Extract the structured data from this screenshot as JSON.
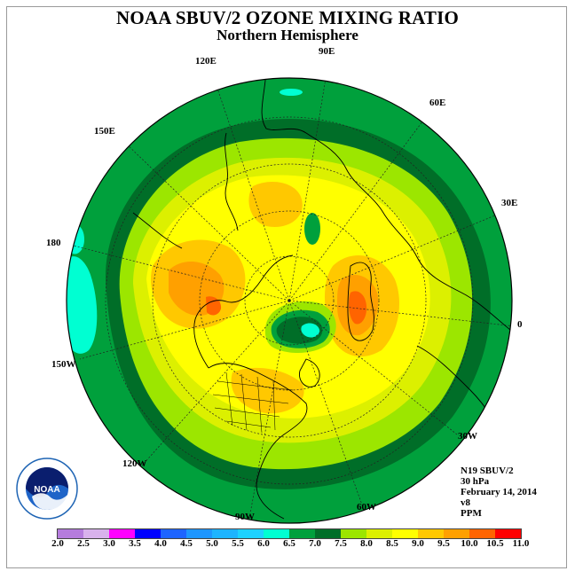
{
  "header": {
    "title": "NOAA SBUV/2 OZONE MIXING RATIO",
    "subtitle": "Northern Hemisphere"
  },
  "map": {
    "projection": "north-polar-stereographic",
    "longitude_labels": [
      "90E",
      "60E",
      "30E",
      "0",
      "30W",
      "60W",
      "90W",
      "120W",
      "150W",
      "180",
      "150E",
      "120E"
    ]
  },
  "info": {
    "satellite": "N19 SBUV/2",
    "level": "30 hPa",
    "date": "February 14, 2014",
    "version": "v8",
    "units": "PPM"
  },
  "legend": {
    "ticks": [
      "2.0",
      "2.5",
      "3.0",
      "3.5",
      "4.0",
      "4.5",
      "5.0",
      "5.5",
      "6.0",
      "6.5",
      "7.0",
      "7.5",
      "8.0",
      "8.5",
      "9.0",
      "9.5",
      "10.0",
      "10.5",
      "11.0"
    ],
    "colors": [
      "#b57cdd",
      "#d8b2ec",
      "#ff00ff",
      "#0000ff",
      "#1e64ff",
      "#1e96ff",
      "#1eb4ff",
      "#1ed2ff",
      "#00ffd2",
      "#00a03c",
      "#006e28",
      "#9ce600",
      "#dcf000",
      "#ffff00",
      "#ffc800",
      "#ffa000",
      "#ff6400",
      "#ff0000",
      "#8b5a3c"
    ]
  },
  "logo": {
    "icon": "noaa-logo",
    "text": "NOAA"
  }
}
